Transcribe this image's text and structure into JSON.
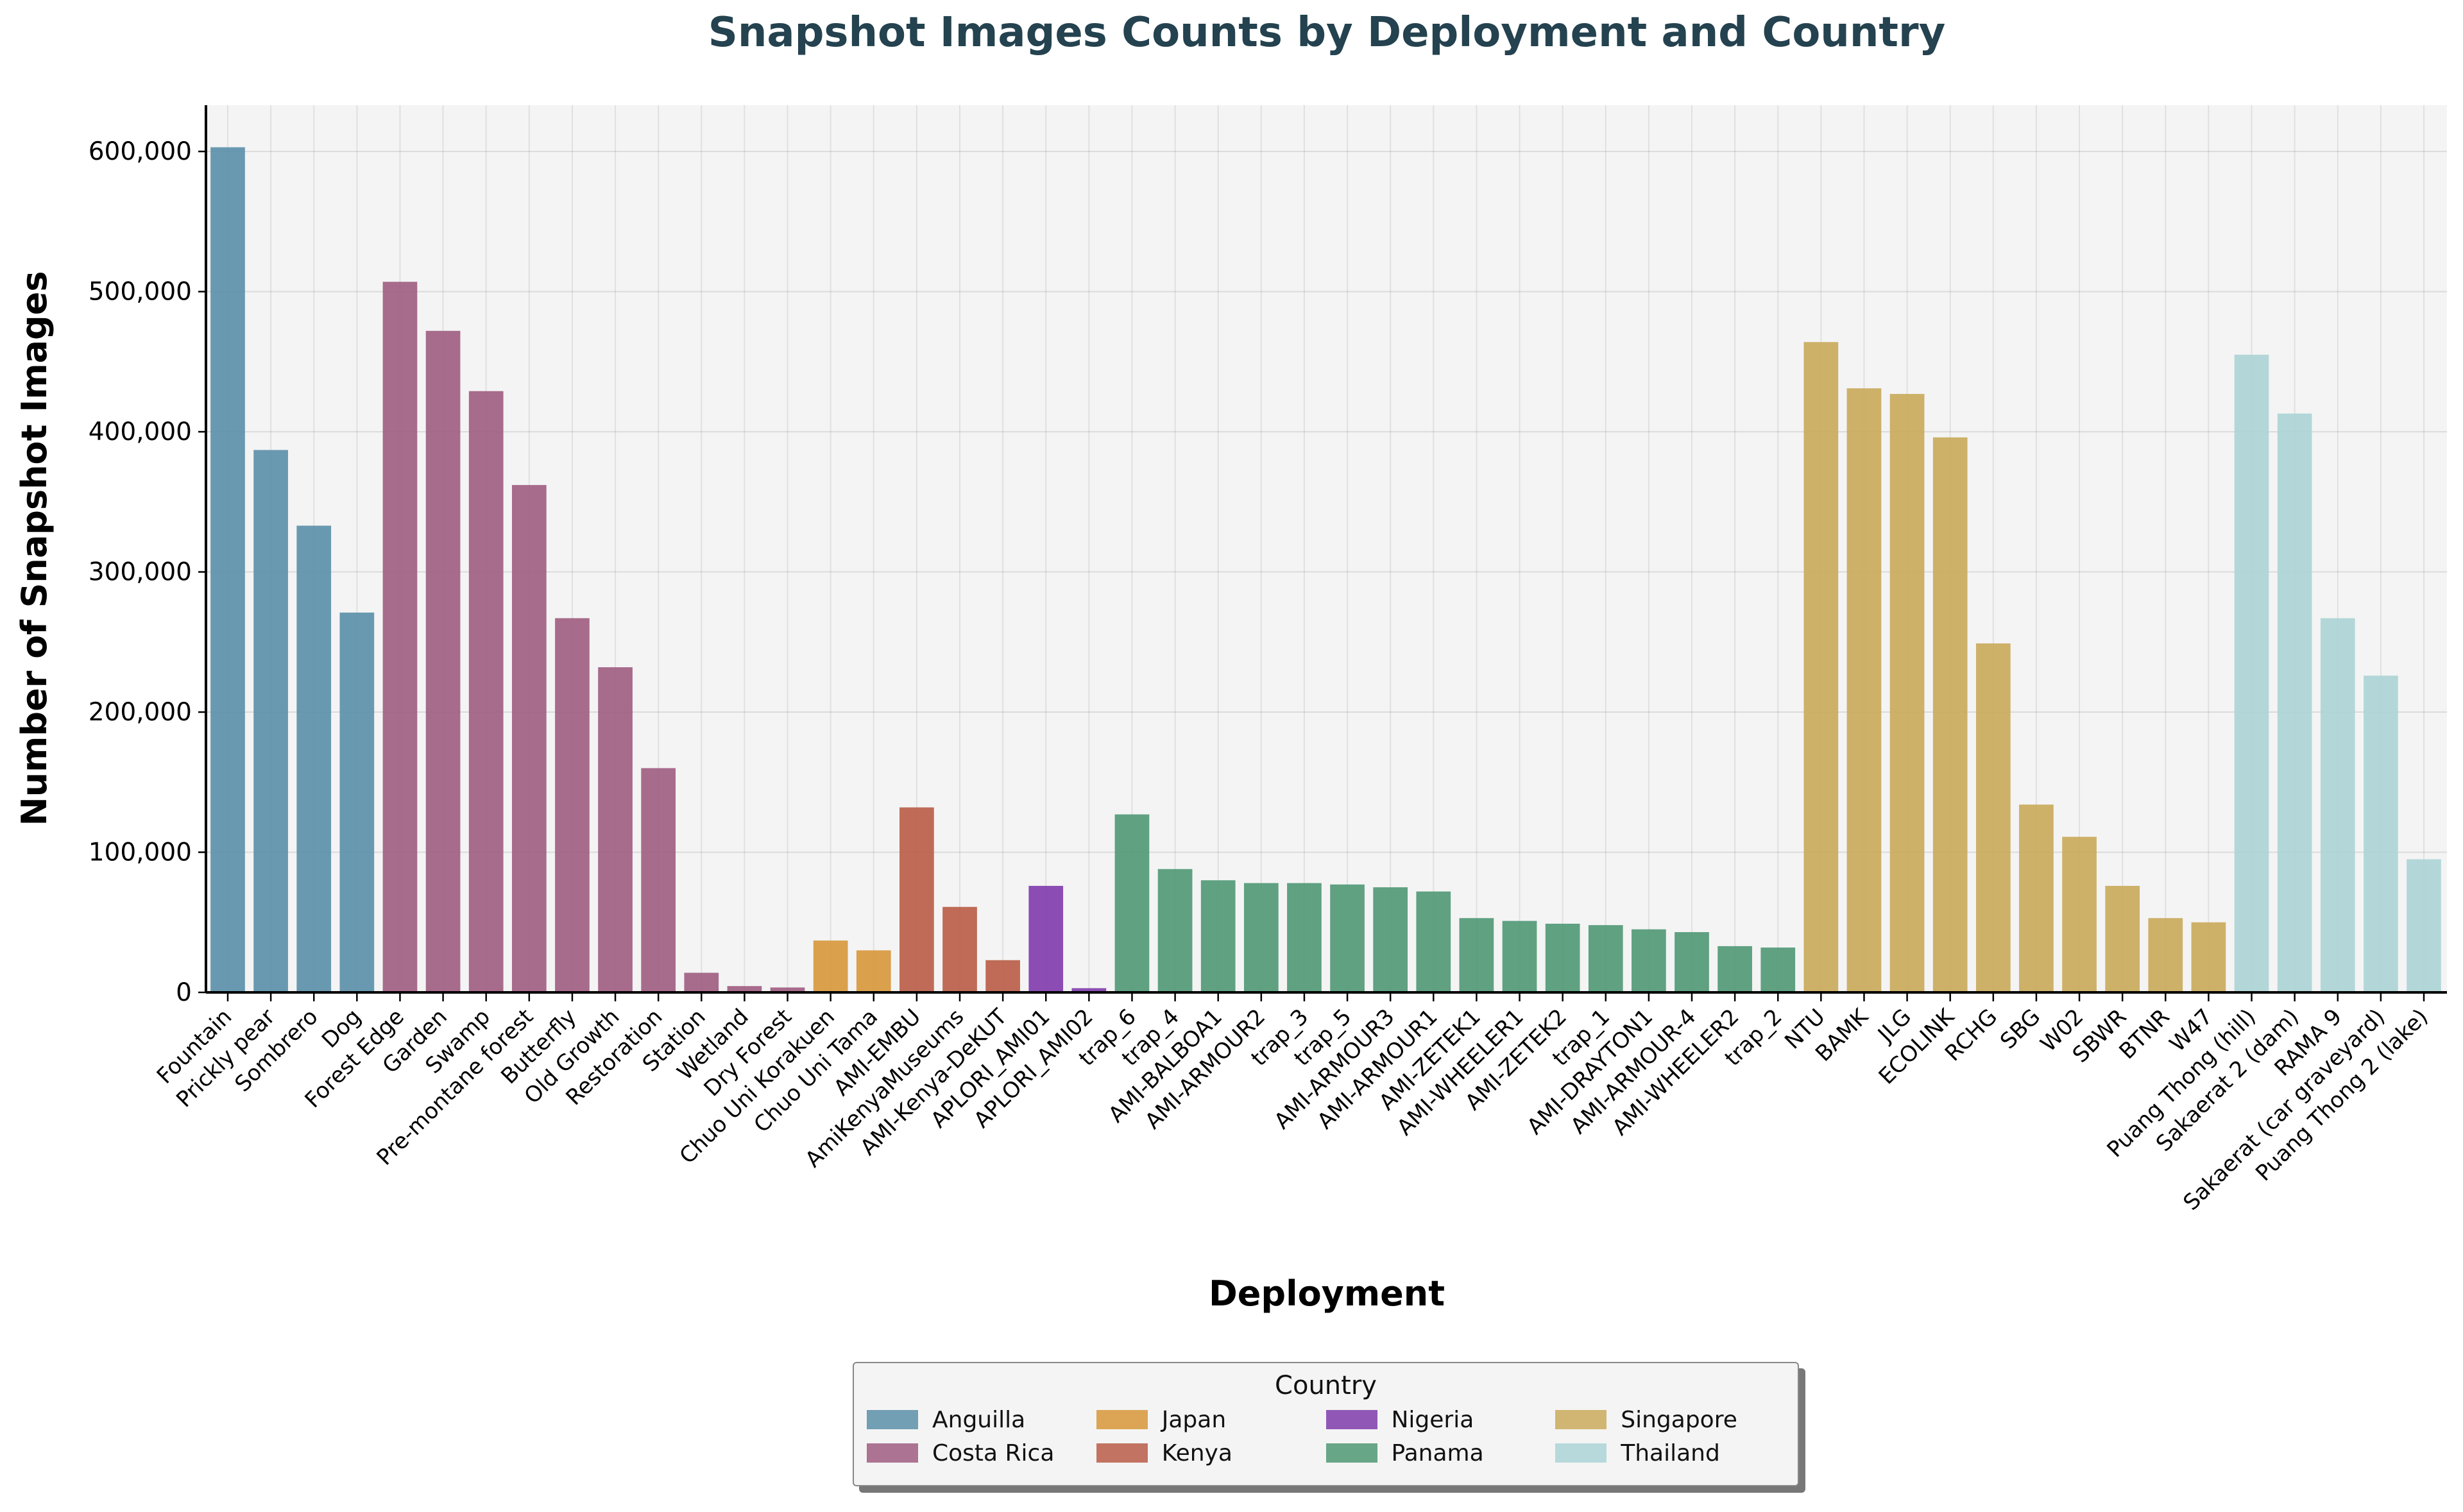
{
  "chart_data": {
    "type": "bar",
    "title": "Snapshot Images Counts by Deployment and Country",
    "xlabel": "Deployment",
    "ylabel": "Number of Snapshot Images",
    "ylim": [
      0,
      633000
    ],
    "yticks": [
      0,
      100000,
      200000,
      300000,
      400000,
      500000,
      600000
    ],
    "ytick_labels": [
      "0",
      "100,000",
      "200,000",
      "300,000",
      "400,000",
      "500,000",
      "600,000"
    ],
    "grid": true,
    "legend": {
      "title": "Country",
      "placement": "bottom-center"
    },
    "colors": {
      "Anguilla": "#5a8fa8",
      "Costa Rica": "#9f5c80",
      "Japan": "#d7973a",
      "Kenya": "#b95c46",
      "Nigeria": "#7f3bac",
      "Panama": "#4f9874",
      "Singapore": "#c9aa5a",
      "Thailand": "#acd4d6"
    },
    "series_order": [
      "Anguilla",
      "Costa Rica",
      "Japan",
      "Kenya",
      "Nigeria",
      "Panama",
      "Singapore",
      "Thailand"
    ],
    "bars": [
      {
        "deployment": "Fountain",
        "country": "Anguilla",
        "value": 603000
      },
      {
        "deployment": "Prickly pear",
        "country": "Anguilla",
        "value": 387000
      },
      {
        "deployment": "Sombrero",
        "country": "Anguilla",
        "value": 333000
      },
      {
        "deployment": "Dog",
        "country": "Anguilla",
        "value": 271000
      },
      {
        "deployment": "Forest Edge",
        "country": "Costa Rica",
        "value": 507000
      },
      {
        "deployment": "Garden",
        "country": "Costa Rica",
        "value": 472000
      },
      {
        "deployment": "Swamp",
        "country": "Costa Rica",
        "value": 429000
      },
      {
        "deployment": "Pre-montane forest",
        "country": "Costa Rica",
        "value": 362000
      },
      {
        "deployment": "Butterfly",
        "country": "Costa Rica",
        "value": 267000
      },
      {
        "deployment": "Old Growth",
        "country": "Costa Rica",
        "value": 232000
      },
      {
        "deployment": "Restoration",
        "country": "Costa Rica",
        "value": 160000
      },
      {
        "deployment": "Station",
        "country": "Costa Rica",
        "value": 14000
      },
      {
        "deployment": "Wetland",
        "country": "Costa Rica",
        "value": 4500
      },
      {
        "deployment": "Dry Forest",
        "country": "Costa Rica",
        "value": 3500
      },
      {
        "deployment": "Chuo Uni Korakuen",
        "country": "Japan",
        "value": 37000
      },
      {
        "deployment": "Chuo Uni Tama",
        "country": "Japan",
        "value": 30000
      },
      {
        "deployment": "AMI-EMBU",
        "country": "Kenya",
        "value": 132000
      },
      {
        "deployment": "AmiKenyaMuseums",
        "country": "Kenya",
        "value": 61000
      },
      {
        "deployment": "AMI-Kenya-DeKUT",
        "country": "Kenya",
        "value": 23000
      },
      {
        "deployment": "APLORI_AMI01",
        "country": "Nigeria",
        "value": 76000
      },
      {
        "deployment": "APLORI_AMI02",
        "country": "Nigeria",
        "value": 3000
      },
      {
        "deployment": "trap_6",
        "country": "Panama",
        "value": 127000
      },
      {
        "deployment": "trap_4",
        "country": "Panama",
        "value": 88000
      },
      {
        "deployment": "AMI-BALBOA1",
        "country": "Panama",
        "value": 80000
      },
      {
        "deployment": "AMI-ARMOUR2",
        "country": "Panama",
        "value": 78000
      },
      {
        "deployment": "trap_3",
        "country": "Panama",
        "value": 78000
      },
      {
        "deployment": "trap_5",
        "country": "Panama",
        "value": 77000
      },
      {
        "deployment": "AMI-ARMOUR3",
        "country": "Panama",
        "value": 75000
      },
      {
        "deployment": "AMI-ARMOUR1",
        "country": "Panama",
        "value": 72000
      },
      {
        "deployment": "AMI-ZETEK1",
        "country": "Panama",
        "value": 53000
      },
      {
        "deployment": "AMI-WHEELER1",
        "country": "Panama",
        "value": 51000
      },
      {
        "deployment": "AMI-ZETEK2",
        "country": "Panama",
        "value": 49000
      },
      {
        "deployment": "trap_1",
        "country": "Panama",
        "value": 48000
      },
      {
        "deployment": "AMI-DRAYTON1",
        "country": "Panama",
        "value": 45000
      },
      {
        "deployment": "AMI-ARMOUR-4",
        "country": "Panama",
        "value": 43000
      },
      {
        "deployment": "AMI-WHEELER2",
        "country": "Panama",
        "value": 33000
      },
      {
        "deployment": "trap_2",
        "country": "Panama",
        "value": 32000
      },
      {
        "deployment": "NTU",
        "country": "Singapore",
        "value": 464000
      },
      {
        "deployment": "BAMK",
        "country": "Singapore",
        "value": 431000
      },
      {
        "deployment": "JLG",
        "country": "Singapore",
        "value": 427000
      },
      {
        "deployment": "ECOLINK",
        "country": "Singapore",
        "value": 396000
      },
      {
        "deployment": "RCHG",
        "country": "Singapore",
        "value": 249000
      },
      {
        "deployment": "SBG",
        "country": "Singapore",
        "value": 134000
      },
      {
        "deployment": "W02",
        "country": "Singapore",
        "value": 111000
      },
      {
        "deployment": "SBWR",
        "country": "Singapore",
        "value": 76000
      },
      {
        "deployment": "BTNR",
        "country": "Singapore",
        "value": 53000
      },
      {
        "deployment": "W47",
        "country": "Singapore",
        "value": 50000
      },
      {
        "deployment": "Puang Thong (hill)",
        "country": "Thailand",
        "value": 455000
      },
      {
        "deployment": "Sakaerat 2 (dam)",
        "country": "Thailand",
        "value": 413000
      },
      {
        "deployment": "RAMA 9",
        "country": "Thailand",
        "value": 267000
      },
      {
        "deployment": "Sakaerat (car graveyard)",
        "country": "Thailand",
        "value": 226000
      },
      {
        "deployment": "Puang Thong 2 (lake)",
        "country": "Thailand",
        "value": 95000
      }
    ]
  }
}
